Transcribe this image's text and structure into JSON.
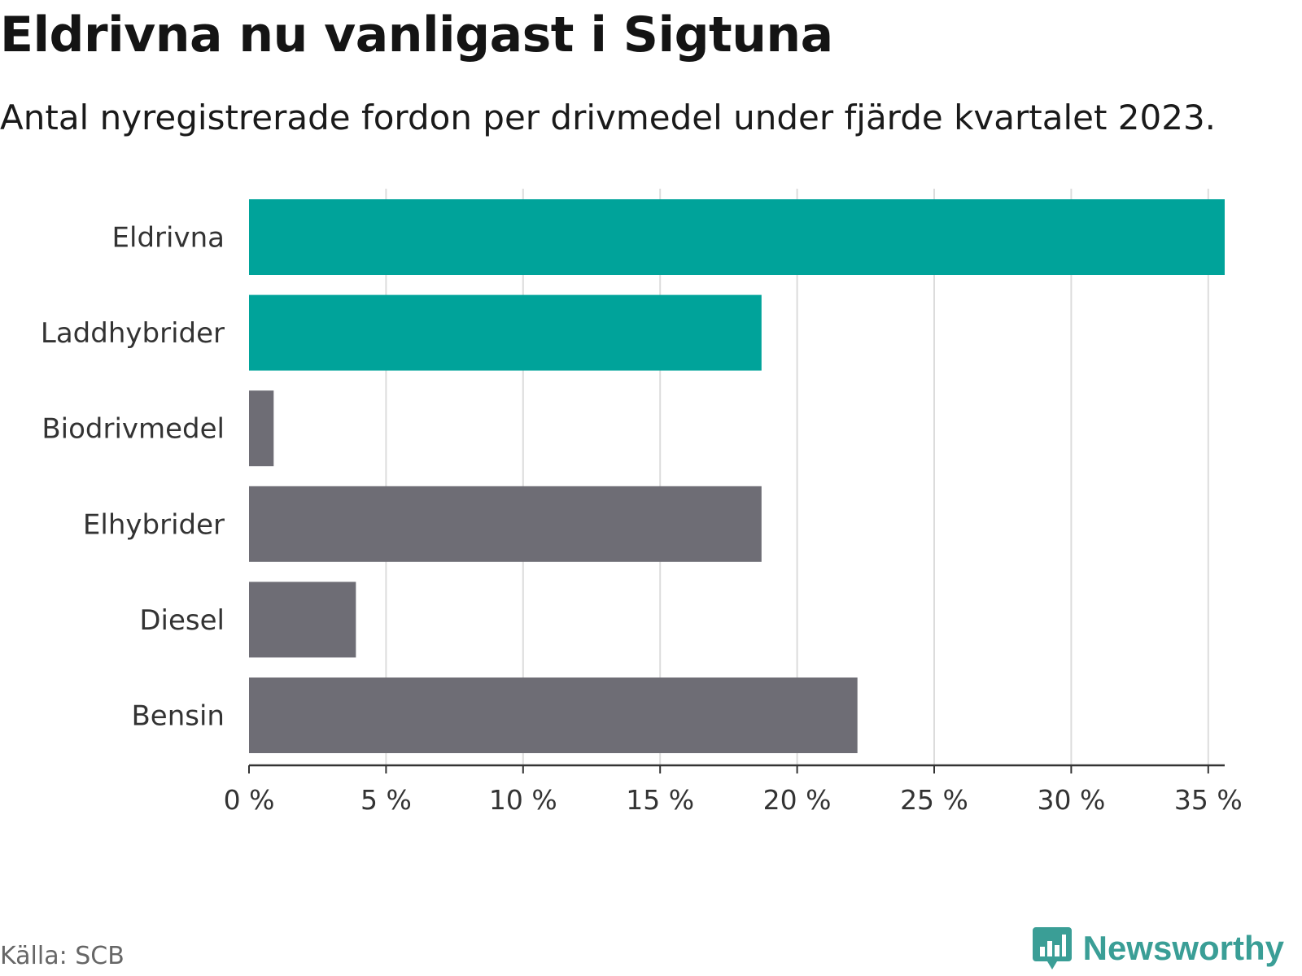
{
  "title": "Eldrivna nu vanligast i Sigtuna",
  "subtitle": "Antal nyregistrerade fordon per drivmedel under fjärde kvartalet 2023.",
  "footer": {
    "source": "Källa: SCB",
    "brand": "Newsworthy",
    "brand_icon": "newsworthy-chart-logo-icon"
  },
  "colors": {
    "highlight": "#00a39a",
    "default": "#6e6d75",
    "brand": "#3a9e96",
    "grid": "#dcdcdc",
    "axis": "#333333"
  },
  "chart_data": {
    "type": "bar",
    "orientation": "horizontal",
    "title": "Eldrivna nu vanligast i Sigtuna",
    "subtitle": "Antal nyregistrerade fordon per drivmedel under fjärde kvartalet 2023.",
    "categories": [
      "Eldrivna",
      "Laddhybrider",
      "Biodrivmedel",
      "Elhybrider",
      "Diesel",
      "Bensin"
    ],
    "values": [
      35.6,
      18.7,
      0.9,
      18.7,
      3.9,
      22.2
    ],
    "highlighted": [
      true,
      true,
      false,
      false,
      false,
      false
    ],
    "xlim": [
      0,
      35.6
    ],
    "xticks": [
      0,
      5,
      10,
      15,
      20,
      25,
      30,
      35
    ],
    "xtick_labels": [
      "0 %",
      "5 %",
      "10 %",
      "15 %",
      "20 %",
      "25 %",
      "30 %",
      "35 %"
    ],
    "xlabel": "",
    "ylabel": "",
    "grid": true,
    "unit": "%"
  }
}
